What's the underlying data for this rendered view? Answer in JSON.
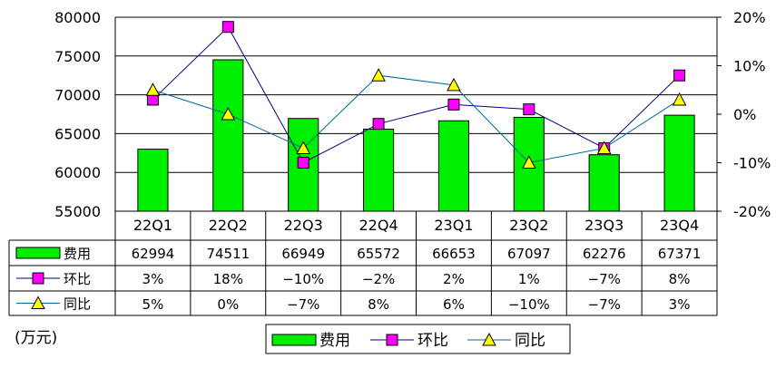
{
  "chart_data": {
    "type": "bar",
    "categories": [
      "22Q1",
      "22Q2",
      "22Q3",
      "22Q4",
      "23Q1",
      "23Q2",
      "23Q3",
      "23Q4"
    ],
    "series": [
      {
        "name": "费用",
        "type": "bar",
        "axis": "left",
        "color": "#00ee00",
        "values": [
          62994,
          74511,
          66949,
          65572,
          66653,
          67097,
          62276,
          67371
        ],
        "labels": [
          "62994",
          "74511",
          "66949",
          "65572",
          "66653",
          "67097",
          "62276",
          "67371"
        ]
      },
      {
        "name": "环比",
        "type": "line",
        "axis": "right",
        "color": "#000080",
        "marker": "square",
        "marker_color": "#ff00ff",
        "values": [
          3,
          18,
          -10,
          -2,
          2,
          1,
          -7,
          8
        ],
        "labels": [
          "3%",
          "18%",
          "−10%",
          "−2%",
          "2%",
          "1%",
          "−7%",
          "8%"
        ]
      },
      {
        "name": "同比",
        "type": "line",
        "axis": "right",
        "color": "#006699",
        "marker": "triangle",
        "marker_color": "#ffff00",
        "values": [
          5,
          0,
          -7,
          8,
          6,
          -10,
          -7,
          3
        ],
        "labels": [
          "5%",
          "0%",
          "−7%",
          "8%",
          "6%",
          "−10%",
          "−7%",
          "3%"
        ]
      }
    ],
    "y_left": {
      "ylim": [
        55000,
        80000
      ],
      "ticks": [
        "55000",
        "60000",
        "65000",
        "70000",
        "75000",
        "80000"
      ]
    },
    "y_right": {
      "ylim": [
        -20,
        20
      ],
      "ticks": [
        "-20%",
        "-10%",
        "0%",
        "10%",
        "20%"
      ]
    },
    "unit_label": "(万元)",
    "grid": true,
    "legend_position": "bottom-center",
    "data_table": true
  }
}
